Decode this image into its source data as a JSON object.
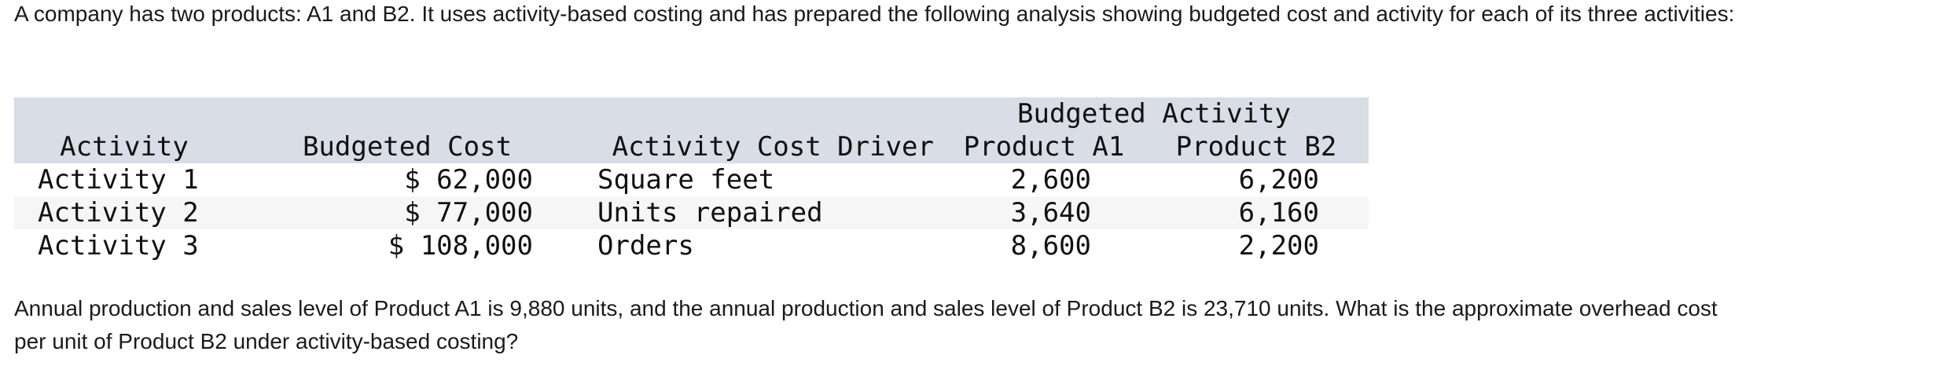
{
  "intro": "A company has two products: A1 and B2. It uses activity-based costing and has prepared the following analysis showing budgeted cost and activity for each of its three activities:",
  "table": {
    "group_header": "Budgeted Activity",
    "headers": {
      "activity": "Activity",
      "budgeted_cost": "Budgeted Cost",
      "driver": "Activity Cost Driver",
      "product_a1": "Product A1",
      "product_b2": "Product B2"
    },
    "rows": [
      {
        "activity": "Activity 1",
        "cost": "$ 62,000",
        "driver": "Square feet",
        "a1": "2,600",
        "b2": "6,200"
      },
      {
        "activity": "Activity 2",
        "cost": "$ 77,000",
        "driver": "Units repaired",
        "a1": "3,640",
        "b2": "6,160"
      },
      {
        "activity": "Activity 3",
        "cost": "$ 108,000",
        "driver": "Orders",
        "a1": "8,600",
        "b2": "2,200"
      }
    ]
  },
  "question": "Annual production and sales level of Product A1 is 9,880 units, and the annual production and sales level of Product B2 is 23,710 units. What is the approximate overhead cost per unit of Product B2 under activity-based costing?"
}
